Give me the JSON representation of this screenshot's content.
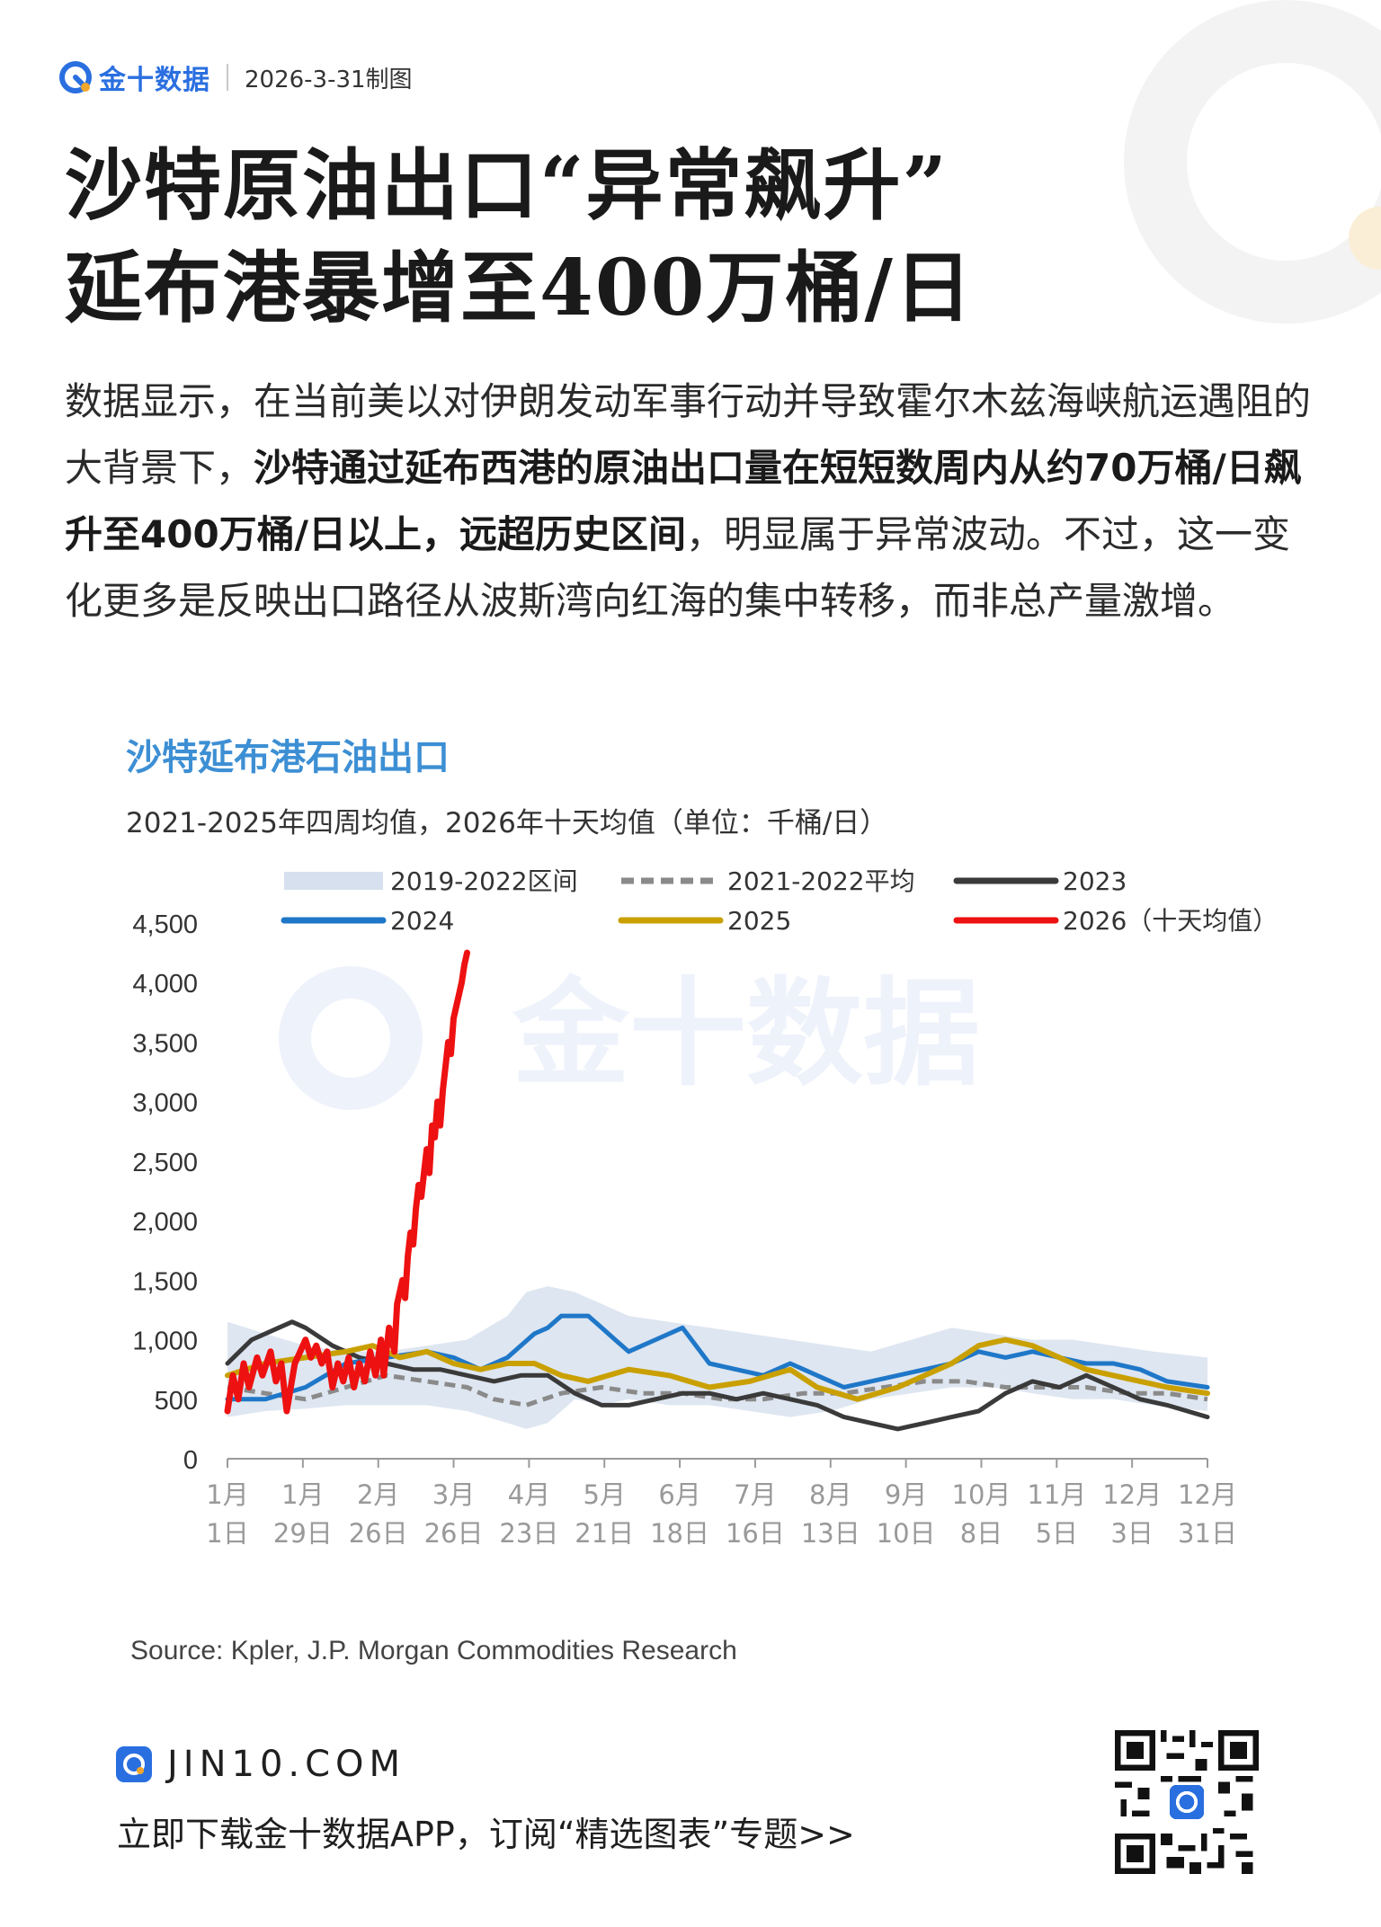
{
  "header": {
    "brand": "金十数据",
    "date_label": "2026-3-31制图"
  },
  "headline": {
    "line1": "沙特原油出口“异常飙升”",
    "line2": "延布港暴增至400万桶/日"
  },
  "body": {
    "part1": "数据显示，在当前美以对伊朗发动军事行动并导致霍尔木兹海峡航运遇阻的大背景下，",
    "bold": "沙特通过延布西港的原油出口量在短短数周内从约70万桶/日飙升至400万桶/日以上，远超历史区间",
    "part2": "，明显属于异常波动。不过，这一变化更多是反映出口路径从波斯湾向红海的集中转移，而非总产量激增。"
  },
  "watermark": "金十数据",
  "chart_data": {
    "type": "line",
    "title": "沙特延布港石油出口",
    "subtitle": "2021-2025年四周均值，2026年十天均值（单位：千桶/日）",
    "ylim": [
      0,
      4500
    ],
    "yticks": [
      "0",
      "500",
      "1,000",
      "1,500",
      "2,000",
      "2,500",
      "3,000",
      "3,500",
      "4,000",
      "4,500"
    ],
    "xlim": [
      1,
      365
    ],
    "xticks": [
      {
        "day": 1,
        "top": "1月",
        "bottom": "1日"
      },
      {
        "day": 29,
        "top": "1月",
        "bottom": "29日"
      },
      {
        "day": 57,
        "top": "2月",
        "bottom": "26日"
      },
      {
        "day": 85,
        "top": "3月",
        "bottom": "26日"
      },
      {
        "day": 113,
        "top": "4月",
        "bottom": "23日"
      },
      {
        "day": 141,
        "top": "5月",
        "bottom": "21日"
      },
      {
        "day": 169,
        "top": "6月",
        "bottom": "18日"
      },
      {
        "day": 197,
        "top": "7月",
        "bottom": "16日"
      },
      {
        "day": 225,
        "top": "8月",
        "bottom": "13日"
      },
      {
        "day": 253,
        "top": "9月",
        "bottom": "10日"
      },
      {
        "day": 281,
        "top": "10月",
        "bottom": "8日"
      },
      {
        "day": 309,
        "top": "11月",
        "bottom": "5日"
      },
      {
        "day": 337,
        "top": "12月",
        "bottom": "3日"
      },
      {
        "day": 365,
        "top": "12月",
        "bottom": "31日"
      }
    ],
    "legend": [
      {
        "name": "2019-2022区间",
        "style": "band",
        "color": "#d6e0ee"
      },
      {
        "name": "2021-2022平均",
        "style": "dashed",
        "color": "#8a8a8a"
      },
      {
        "name": "2023",
        "style": "solid",
        "color": "#3a3a3a"
      },
      {
        "name": "2024",
        "style": "solid",
        "color": "#1f77c8"
      },
      {
        "name": "2025",
        "style": "solid",
        "color": "#c9a000"
      },
      {
        "name": "2026（十天均值）",
        "style": "solid",
        "color": "#ee1111"
      }
    ],
    "band": {
      "x": [
        1,
        15,
        30,
        45,
        60,
        75,
        90,
        105,
        112,
        120,
        130,
        140,
        150,
        165,
        180,
        195,
        210,
        225,
        240,
        255,
        270,
        285,
        300,
        315,
        330,
        345,
        365
      ],
      "low": [
        350,
        400,
        420,
        450,
        450,
        450,
        400,
        300,
        250,
        300,
        500,
        450,
        500,
        450,
        450,
        400,
        350,
        400,
        500,
        550,
        600,
        600,
        550,
        500,
        500,
        450,
        400
      ],
      "high": [
        1150,
        1050,
        950,
        900,
        900,
        950,
        1000,
        1200,
        1400,
        1450,
        1400,
        1300,
        1200,
        1150,
        1100,
        1050,
        1000,
        950,
        900,
        1000,
        1100,
        1050,
        1000,
        1000,
        950,
        900,
        850
      ]
    },
    "series": [
      {
        "name": "2021-2022平均",
        "color": "#8a8a8a",
        "dash": true,
        "width": 5,
        "x": [
          1,
          15,
          30,
          45,
          60,
          75,
          90,
          100,
          112,
          125,
          140,
          155,
          170,
          185,
          200,
          215,
          230,
          245,
          260,
          275,
          290,
          305,
          320,
          335,
          350,
          365
        ],
        "values": [
          600,
          550,
          500,
          600,
          700,
          650,
          600,
          500,
          450,
          550,
          600,
          550,
          550,
          500,
          500,
          550,
          550,
          600,
          650,
          650,
          600,
          600,
          600,
          550,
          550,
          500
        ]
      },
      {
        "name": "2023",
        "color": "#3a3a3a",
        "dash": false,
        "width": 5,
        "x": [
          1,
          10,
          20,
          25,
          30,
          40,
          50,
          60,
          70,
          80,
          90,
          100,
          110,
          120,
          130,
          140,
          150,
          160,
          170,
          180,
          190,
          200,
          210,
          220,
          230,
          240,
          250,
          260,
          270,
          280,
          290,
          300,
          310,
          320,
          330,
          340,
          350,
          365
        ],
        "values": [
          800,
          1000,
          1100,
          1150,
          1100,
          950,
          850,
          800,
          750,
          750,
          700,
          650,
          700,
          700,
          550,
          450,
          450,
          500,
          550,
          550,
          500,
          550,
          500,
          450,
          350,
          300,
          250,
          300,
          350,
          400,
          550,
          650,
          600,
          700,
          600,
          500,
          450,
          350
        ]
      },
      {
        "name": "2024",
        "color": "#1f77c8",
        "dash": false,
        "width": 5,
        "x": [
          1,
          15,
          30,
          45,
          60,
          75,
          85,
          95,
          105,
          115,
          120,
          125,
          135,
          140,
          145,
          150,
          160,
          170,
          180,
          190,
          200,
          210,
          220,
          230,
          240,
          250,
          260,
          270,
          280,
          290,
          300,
          310,
          320,
          330,
          340,
          350,
          365
        ],
        "values": [
          500,
          500,
          600,
          800,
          850,
          900,
          850,
          750,
          850,
          1050,
          1100,
          1200,
          1200,
          1100,
          1000,
          900,
          1000,
          1100,
          800,
          750,
          700,
          800,
          700,
          600,
          650,
          700,
          750,
          800,
          900,
          850,
          900,
          850,
          800,
          800,
          750,
          650,
          600
        ]
      },
      {
        "name": "2025",
        "color": "#c9a000",
        "dash": false,
        "width": 6,
        "x": [
          1,
          15,
          30,
          45,
          55,
          65,
          75,
          85,
          95,
          105,
          115,
          125,
          135,
          150,
          165,
          180,
          195,
          210,
          220,
          235,
          250,
          260,
          270,
          280,
          290,
          300,
          310,
          320,
          330,
          340,
          350,
          365
        ],
        "values": [
          700,
          800,
          850,
          900,
          950,
          850,
          900,
          800,
          750,
          800,
          800,
          700,
          650,
          750,
          700,
          600,
          650,
          750,
          600,
          500,
          600,
          700,
          800,
          950,
          1000,
          950,
          850,
          750,
          700,
          650,
          600,
          550
        ]
      },
      {
        "name": "2026（十天均值）",
        "color": "#ee1111",
        "dash": false,
        "width": 7,
        "x": [
          1,
          3,
          5,
          7,
          9,
          12,
          14,
          17,
          19,
          21,
          23,
          26,
          28,
          30,
          32,
          34,
          36,
          38,
          40,
          42,
          44,
          46,
          48,
          50,
          52,
          54,
          56,
          58,
          59,
          61,
          63,
          64,
          66,
          67,
          68,
          69,
          70,
          71,
          72,
          73,
          74,
          75,
          76,
          77,
          78,
          79,
          80,
          81,
          82,
          83,
          84,
          85,
          86,
          87,
          88,
          89,
          90
        ],
        "values": [
          400,
          700,
          500,
          800,
          600,
          850,
          700,
          900,
          650,
          800,
          400,
          800,
          900,
          1000,
          850,
          950,
          800,
          900,
          600,
          800,
          650,
          850,
          600,
          800,
          650,
          900,
          700,
          1000,
          700,
          1100,
          900,
          1300,
          1500,
          1350,
          1700,
          1900,
          1800,
          2100,
          2300,
          2200,
          2400,
          2600,
          2400,
          2800,
          2700,
          3000,
          2800,
          3100,
          3300,
          3500,
          3400,
          3700,
          3800,
          3900,
          4000,
          4150,
          4250
        ]
      }
    ]
  },
  "source": "Source: Kpler, J.P. Morgan Commodities Research",
  "footer": {
    "site": "JIN10.COM",
    "cta": "立即下载金十数据APP，订阅“精选图表”专题>>"
  }
}
